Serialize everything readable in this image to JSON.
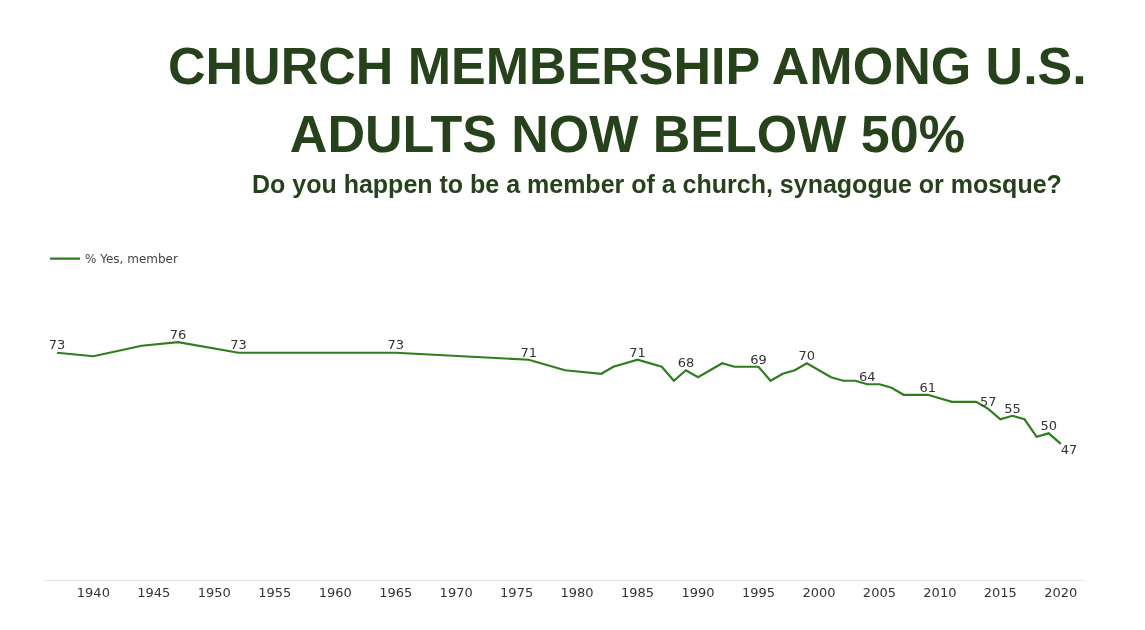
{
  "chart_data": {
    "type": "line",
    "title": "CHURCH MEMBERSHIP AMONG U.S. ADULTS NOW BELOW 50%",
    "subtitle": "Do you happen to be a member of a church, synagogue or mosque?",
    "x": [
      1937,
      1940,
      1944,
      1947,
      1952,
      1965,
      1976,
      1979,
      1982,
      1983,
      1985,
      1987,
      1988,
      1989,
      1990,
      1992,
      1993,
      1995,
      1996,
      1997,
      1998,
      1999,
      2001,
      2002,
      2003,
      2004,
      2005,
      2006,
      2007,
      2008,
      2009,
      2011,
      2013,
      2014,
      2015,
      2016,
      2017,
      2018,
      2019,
      2020
    ],
    "series": [
      {
        "name": "% Yes, member",
        "color": "#2f7d1f",
        "values": [
          73,
          72,
          75,
          76,
          73,
          73,
          71,
          68,
          67,
          69,
          71,
          69,
          65,
          68,
          66,
          70,
          69,
          69,
          65,
          67,
          68,
          70,
          66,
          65,
          65,
          64,
          64,
          63,
          61,
          61,
          61,
          59,
          59,
          57,
          54,
          55,
          54,
          49,
          50,
          47
        ],
        "value_labels": [
          "73",
          null,
          null,
          "76",
          "73",
          "73",
          "71",
          null,
          null,
          null,
          "71",
          null,
          null,
          "68",
          null,
          null,
          null,
          "69",
          null,
          null,
          null,
          "70",
          null,
          null,
          null,
          "64",
          null,
          null,
          null,
          null,
          "61",
          null,
          null,
          "57",
          null,
          "55",
          null,
          null,
          "50",
          "47"
        ]
      }
    ],
    "xlim": [
      1936,
      2022
    ],
    "xticks": [
      1940,
      1945,
      1950,
      1955,
      1960,
      1965,
      1970,
      1975,
      1980,
      1985,
      1990,
      1995,
      2000,
      2005,
      2010,
      2015,
      2020
    ],
    "legend": "top left",
    "marker": "none",
    "line_style": "solid"
  }
}
